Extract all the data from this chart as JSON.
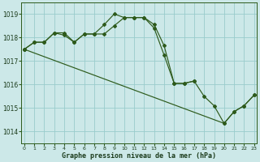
{
  "xlabel": "Graphe pression niveau de la mer (hPa)",
  "x_ticks": [
    0,
    1,
    2,
    3,
    4,
    5,
    6,
    7,
    8,
    9,
    10,
    11,
    12,
    13,
    14,
    15,
    16,
    17,
    18,
    19,
    20,
    21,
    22,
    23
  ],
  "ylim": [
    1013.5,
    1019.5
  ],
  "yticks": [
    1014,
    1015,
    1016,
    1017,
    1018,
    1019
  ],
  "xlim": [
    -0.3,
    23.3
  ],
  "bg_color": "#cce8e8",
  "grid_color": "#99cccc",
  "line_color": "#2d5a1b",
  "line_main_x": [
    0,
    1,
    2,
    3,
    4,
    5,
    6,
    7,
    8,
    9,
    10,
    11,
    12,
    13,
    14,
    15,
    16,
    17,
    18,
    19,
    20,
    21,
    22,
    23
  ],
  "line_main_y": [
    1017.5,
    1017.8,
    1017.8,
    1018.2,
    1018.1,
    1017.8,
    1018.15,
    1018.15,
    1018.15,
    1018.5,
    1018.85,
    1018.85,
    1018.85,
    1018.4,
    1017.25,
    1016.05,
    1016.05,
    1016.15,
    1015.5,
    1015.1,
    1014.35,
    1014.85,
    1015.1,
    1015.55
  ],
  "line_upper_x": [
    0,
    1,
    2,
    3,
    4,
    5,
    6,
    7,
    8,
    9,
    10,
    11,
    12,
    13,
    14,
    15,
    16,
    17
  ],
  "line_upper_y": [
    1017.5,
    1017.8,
    1017.8,
    1018.2,
    1018.2,
    1017.8,
    1018.15,
    1018.15,
    1018.55,
    1019.0,
    1018.85,
    1018.85,
    1018.85,
    1018.55,
    1017.65,
    1016.05,
    1016.05,
    1016.15
  ],
  "line_diag_x": [
    0,
    20,
    21,
    22,
    23
  ],
  "line_diag_y": [
    1017.5,
    1014.35,
    1014.85,
    1015.1,
    1015.55
  ]
}
